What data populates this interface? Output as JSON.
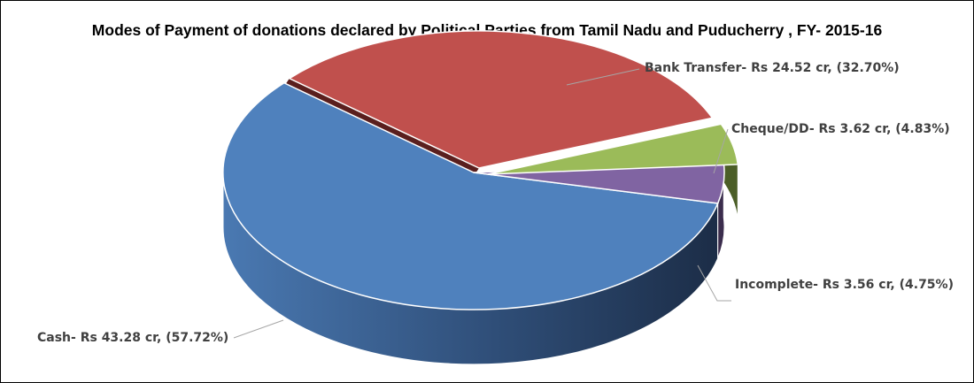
{
  "chart_data": {
    "type": "pie",
    "title": "Modes of Payment of donations declared by Political Parties from Tamil Nadu and Puducherry , FY- 2015-16",
    "slices": [
      {
        "key": "cash",
        "label": "Cash- Rs  43.28  cr, (57.72%)",
        "value": 43.28,
        "percent": 57.72,
        "color": "#4f81bd"
      },
      {
        "key": "bank",
        "label": "Bank Transfer- Rs  24.52  cr, (32.70%)",
        "value": 24.52,
        "percent": 32.7,
        "color": "#c0504d"
      },
      {
        "key": "cheque",
        "label": "Cheque/DD- Rs  3.62  cr, (4.83%)",
        "value": 3.62,
        "percent": 4.83,
        "color": "#9bbb59"
      },
      {
        "key": "incomplete",
        "label": "Incomplete- Rs  3.56  cr, (4.75%)",
        "value": 3.56,
        "percent": 4.75,
        "color": "#8064a2"
      }
    ],
    "legend": "none",
    "style": "3d-exploded"
  }
}
